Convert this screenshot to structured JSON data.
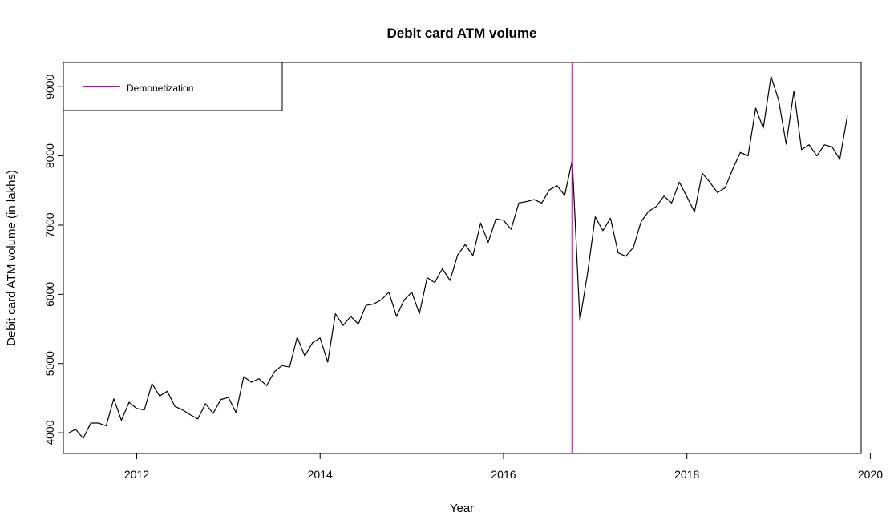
{
  "chart_data": {
    "type": "line",
    "title": "Debit card ATM volume",
    "xlabel": "Year",
    "ylabel": "Debit card ATM volume (in lakhs)",
    "xlim": [
      2011.2,
      2019.9
    ],
    "ylim": [
      3700,
      9350
    ],
    "x_ticks": [
      2012,
      2014,
      2016,
      2018,
      2020
    ],
    "y_ticks": [
      4000,
      5000,
      6000,
      7000,
      8000,
      9000
    ],
    "grid": false,
    "legend": {
      "placement": "top-left",
      "entries": [
        {
          "label": "Demonetization",
          "color": "#c000c0"
        }
      ]
    },
    "series": [
      {
        "color": "#000000",
        "x": [
          2011.25,
          2011.333,
          2011.417,
          2011.5,
          2011.583,
          2011.667,
          2011.75,
          2011.833,
          2011.917,
          2012.0,
          2012.083,
          2012.167,
          2012.25,
          2012.333,
          2012.417,
          2012.5,
          2012.583,
          2012.667,
          2012.75,
          2012.833,
          2012.917,
          2013.0,
          2013.083,
          2013.167,
          2013.25,
          2013.333,
          2013.417,
          2013.5,
          2013.583,
          2013.667,
          2013.75,
          2013.833,
          2013.917,
          2014.0,
          2014.083,
          2014.167,
          2014.25,
          2014.333,
          2014.417,
          2014.5,
          2014.583,
          2014.667,
          2014.75,
          2014.833,
          2014.917,
          2015.0,
          2015.083,
          2015.167,
          2015.25,
          2015.333,
          2015.417,
          2015.5,
          2015.583,
          2015.667,
          2015.75,
          2015.833,
          2015.917,
          2016.0,
          2016.083,
          2016.167,
          2016.25,
          2016.333,
          2016.417,
          2016.5,
          2016.583,
          2016.667,
          2016.75,
          2016.833,
          2016.917,
          2017.0,
          2017.083,
          2017.167,
          2017.25,
          2017.333,
          2017.417,
          2017.5,
          2017.583,
          2017.667,
          2017.75,
          2017.833,
          2017.917,
          2018.0,
          2018.083,
          2018.167,
          2018.25,
          2018.333,
          2018.417,
          2018.5,
          2018.583,
          2018.667,
          2018.75,
          2018.833,
          2018.917,
          2019.0,
          2019.083,
          2019.167,
          2019.25,
          2019.333,
          2019.417,
          2019.5,
          2019.583,
          2019.667,
          2019.75
        ],
        "y": [
          3990,
          4050,
          3920,
          4140,
          4140,
          4100,
          4490,
          4180,
          4440,
          4350,
          4330,
          4710,
          4530,
          4600,
          4380,
          4330,
          4260,
          4200,
          4420,
          4280,
          4480,
          4510,
          4290,
          4810,
          4730,
          4780,
          4680,
          4880,
          4970,
          4950,
          5380,
          5110,
          5300,
          5370,
          5020,
          5720,
          5550,
          5680,
          5570,
          5840,
          5860,
          5920,
          6030,
          5680,
          5920,
          6030,
          5720,
          6240,
          6170,
          6370,
          6200,
          6570,
          6720,
          6560,
          7030,
          6750,
          7090,
          7070,
          6940,
          7320,
          7340,
          7370,
          7320,
          7510,
          7570,
          7430,
          7940,
          5620,
          6310,
          7120,
          6920,
          7100,
          6600,
          6550,
          6680,
          7050,
          7200,
          7270,
          7420,
          7320,
          7620,
          7410,
          7190,
          7750,
          7620,
          7470,
          7540,
          7810,
          8050,
          8000,
          8690,
          8400,
          9150,
          8810,
          8170,
          8940,
          8090,
          8160,
          8000,
          8160,
          8130,
          7950,
          8580
        ]
      }
    ],
    "reference_lines": [
      {
        "x": 2016.75,
        "color": "#c000c0",
        "label": "Demonetization"
      }
    ]
  }
}
